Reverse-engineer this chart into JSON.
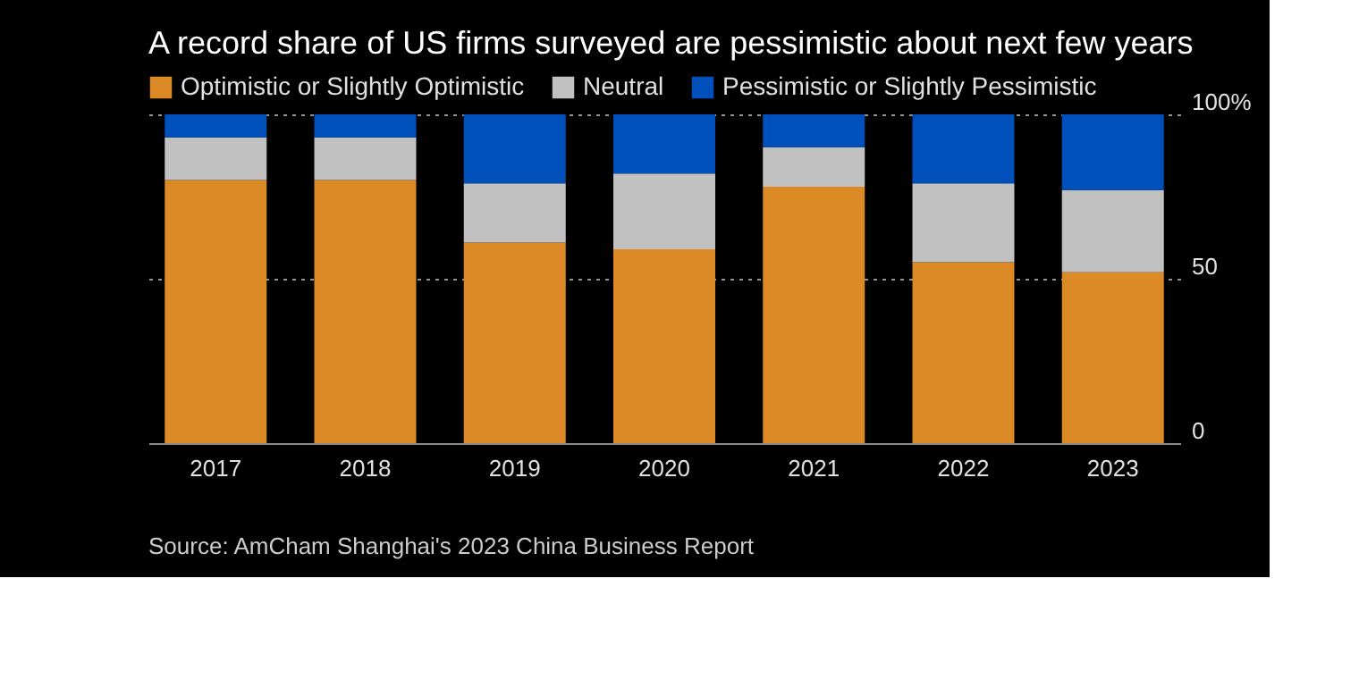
{
  "chart_data": {
    "type": "bar",
    "title": "A record share of US firms surveyed are pessimistic about next few years",
    "categories": [
      "2017",
      "2018",
      "2019",
      "2020",
      "2021",
      "2022",
      "2023"
    ],
    "stacked": true,
    "series": [
      {
        "name": "Optimistic or Slightly Optimistic",
        "color": "#dc8a26",
        "values": [
          80,
          80,
          61,
          59,
          78,
          55,
          52
        ]
      },
      {
        "name": "Neutral",
        "color": "#c1c1c1",
        "values": [
          13,
          13,
          18,
          23,
          12,
          24,
          25
        ]
      },
      {
        "name": "Pessimistic or Slightly Pessimistic",
        "color": "#0050bb",
        "values": [
          7,
          7,
          21,
          18,
          10,
          21,
          23
        ]
      }
    ],
    "ylim": [
      0,
      100
    ],
    "yticks": [
      0,
      50,
      {
        "value": 100,
        "label": "100%"
      }
    ],
    "grid": "y",
    "legend": "top left",
    "annotations": [
      "Source: AmCham Shanghai's 2023 China Business Report"
    ]
  }
}
